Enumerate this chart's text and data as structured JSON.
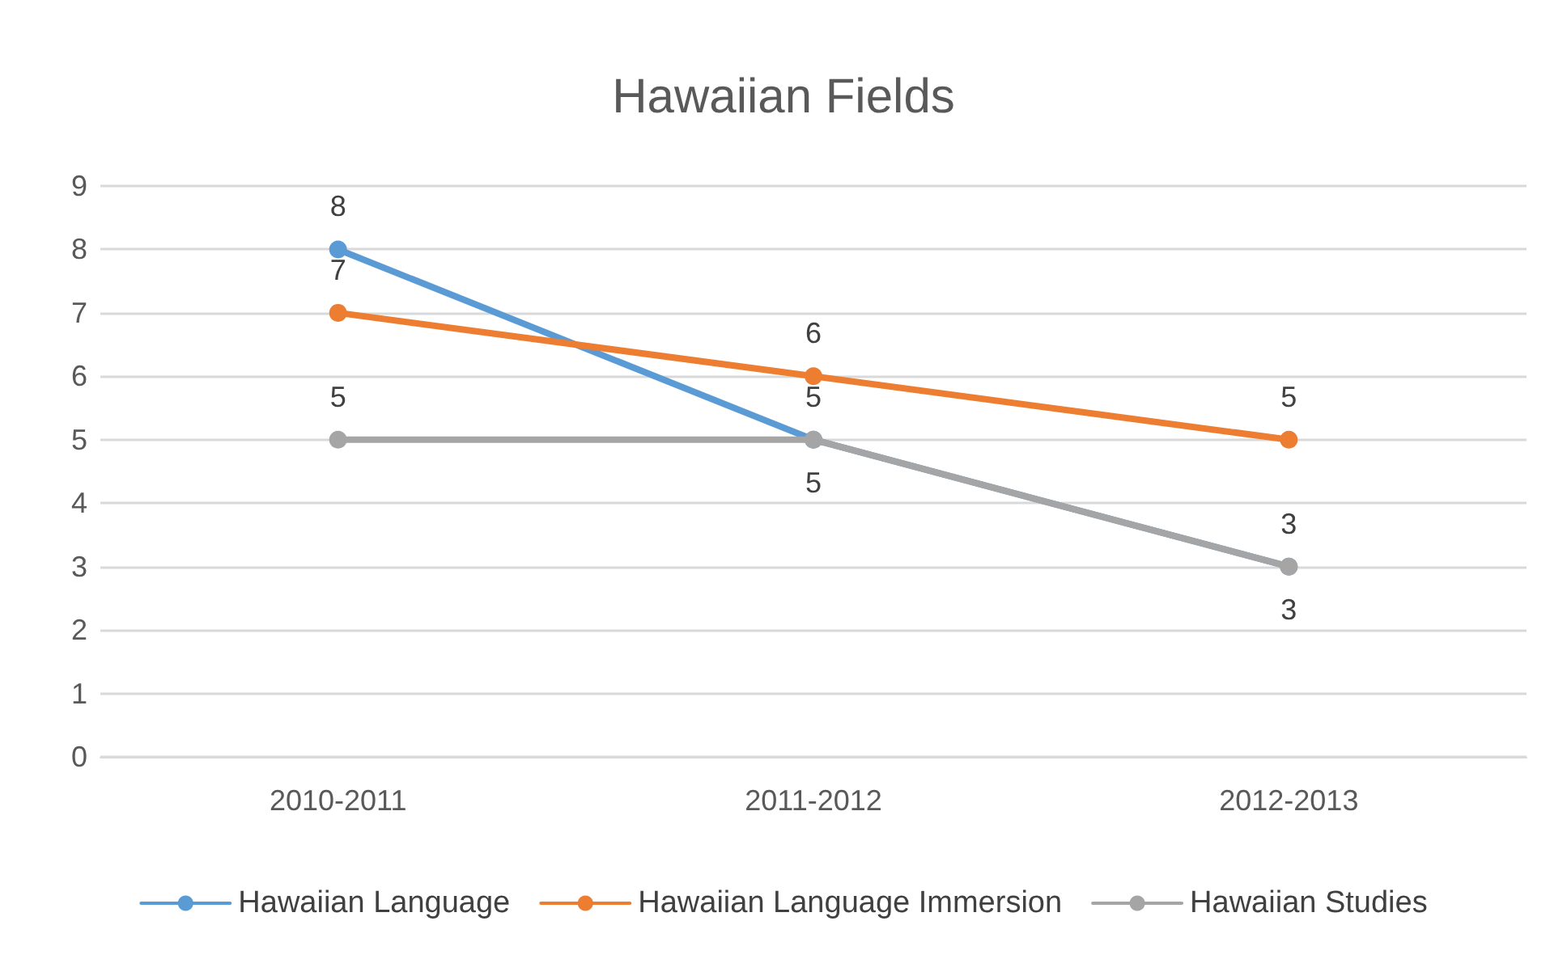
{
  "chart_data": {
    "type": "line",
    "title": "Hawaiian Fields",
    "categories": [
      "2010-2011",
      "2011-2012",
      "2012-2013"
    ],
    "series": [
      {
        "name": "Hawaiian Language",
        "color": "#5b9bd5",
        "values": [
          8,
          5,
          3
        ]
      },
      {
        "name": "Hawaiian Language Immersion",
        "color": "#ed7d31",
        "values": [
          7,
          6,
          5
        ]
      },
      {
        "name": "Hawaiian Studies",
        "color": "#a5a5a5",
        "values": [
          5,
          5,
          3
        ]
      }
    ],
    "ylim": [
      0,
      9
    ],
    "yticks": [
      0,
      1,
      2,
      3,
      4,
      5,
      6,
      7,
      8,
      9
    ],
    "grid": "y",
    "legend": "bottom",
    "marker": "circle",
    "line_style": "solid",
    "data_labels": true
  }
}
